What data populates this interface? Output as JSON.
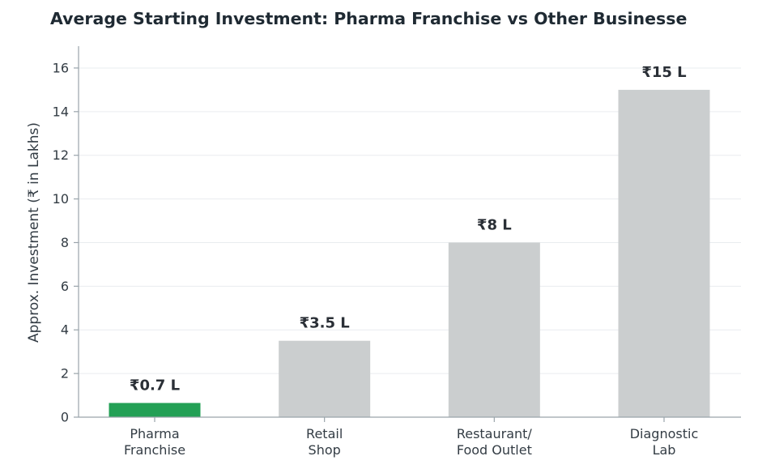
{
  "chart_data": {
    "type": "bar",
    "title": "Average Starting Investment: Pharma Franchise vs Other Businesse",
    "xlabel": "",
    "ylabel": "Approx. Investment (₹ in Lakhs)",
    "ylim": [
      0,
      17
    ],
    "yticks": [
      0,
      2,
      4,
      6,
      8,
      10,
      12,
      14,
      16
    ],
    "grid": true,
    "categories": [
      [
        "Pharma",
        "Franchise"
      ],
      [
        "Retail",
        "Shop"
      ],
      [
        "Restaurant/",
        "Food Outlet"
      ],
      [
        "Diagnostic",
        "Lab"
      ]
    ],
    "values": [
      0.65,
      3.5,
      8,
      15
    ],
    "data_labels": [
      "₹0.7 L",
      "₹3.5 L",
      "₹8 L",
      "₹15 L"
    ],
    "colors": [
      "#23a055",
      "#cbcecf",
      "#cbcecf",
      "#cbcecf"
    ]
  }
}
